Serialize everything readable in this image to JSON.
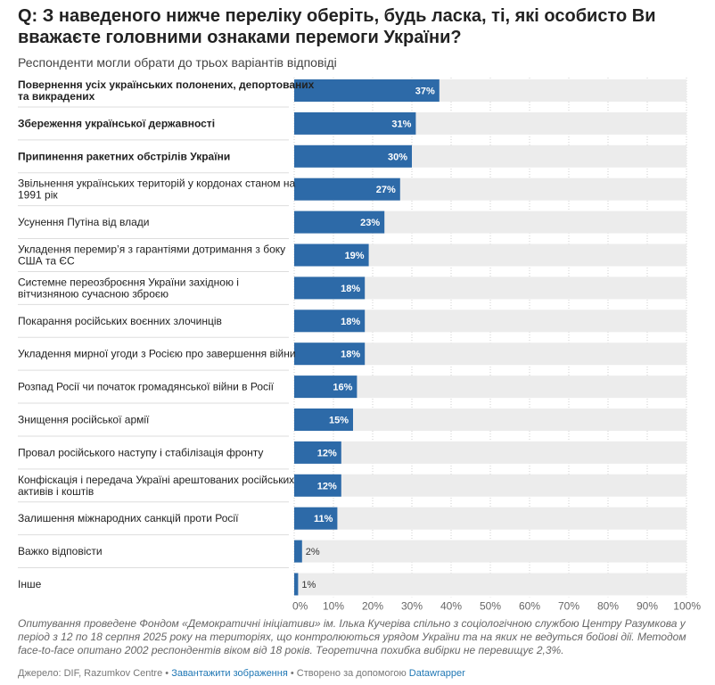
{
  "chart_data": {
    "type": "bar",
    "orientation": "horizontal",
    "title": "Q: З наведеного нижче переліку оберіть, будь ласка, ті, які особисто Ви вважаєте головними ознаками перемоги України?",
    "subtitle": "Респонденти могли обрати до трьох варіантів відповіді",
    "categories": [
      "Повернення усіх українських полонених, депортованих та викрадених",
      "Збереження української державності",
      "Припинення ракетних обстрілів України",
      "Звільнення українських територій у кордонах станом на 1991 рік",
      "Усунення Путіна від влади",
      "Укладення перемир’я з гарантіями дотримання з боку США та ЄС",
      "Системне переозброєння України західною і вітчизняною сучасною зброєю",
      "Покарання російських воєнних злочинців",
      "Укладення мирної угоди з Росією про завершення війни",
      "Розпад Росії чи початок громадянської війни в Росії",
      "Знищення російської армії",
      "Провал російського наступу і стабілізація фронту",
      "Конфіскація і передача Україні арештованих російських активів і коштів",
      "Залишення міжнародних санкцій проти Росії",
      "Важко відповісти",
      "Інше"
    ],
    "category_lines": [
      [
        "Повернення усіх українських полонених, депортованих",
        "та викрадених"
      ],
      [
        "Збереження української державності"
      ],
      [
        "Припинення ракетних обстрілів України"
      ],
      [
        "Звільнення українських територій у кордонах станом на",
        "1991 рік"
      ],
      [
        "Усунення Путіна від влади"
      ],
      [
        "Укладення перемир’я з гарантіями дотримання з боку",
        "США та ЄС"
      ],
      [
        "Системне переозброєння України західною і",
        "вітчизняною сучасною зброєю"
      ],
      [
        "Покарання російських воєнних злочинців"
      ],
      [
        "Укладення мирної угоди з Росією про завершення війни"
      ],
      [
        "Розпад Росії чи початок громадянської війни в Росії"
      ],
      [
        "Знищення російської армії"
      ],
      [
        "Провал російського наступу і стабілізація фронту"
      ],
      [
        "Конфіскація і передача Україні арештованих російських",
        "активів і коштів"
      ],
      [
        "Залишення міжнародних санкцій проти Росії"
      ],
      [
        "Важко відповісти"
      ],
      [
        "Інше"
      ]
    ],
    "bold_categories": [
      0,
      1,
      2
    ],
    "values": [
      37,
      31,
      30,
      27,
      23,
      19,
      18,
      18,
      18,
      16,
      15,
      12,
      12,
      11,
      2,
      1
    ],
    "value_labels": [
      "37%",
      "31%",
      "30%",
      "27%",
      "23%",
      "19%",
      "18%",
      "18%",
      "18%",
      "16%",
      "15%",
      "12%",
      "12%",
      "11%",
      "2%",
      "1%"
    ],
    "xlim": [
      0,
      100
    ],
    "ticks": [
      0,
      10,
      20,
      30,
      40,
      50,
      60,
      70,
      80,
      90,
      100
    ],
    "tick_labels": [
      "0%",
      "10%",
      "20%",
      "30%",
      "40%",
      "50%",
      "60%",
      "70%",
      "80%",
      "90%",
      "100%"
    ],
    "xlabel": "",
    "ylabel": "",
    "colors": {
      "bar": "#2d6aa8",
      "track": "#ececec",
      "label_inside": "#ffffff",
      "label_outside": "#333333"
    }
  },
  "notes": "Опитування проведене Фондом «Демократичні ініціативи» ім. Ілька Кучеріва спільно з соціологічною службою Центру Разумкова у період з 12 по 18 серпня 2025 року на територіях, що контролюються урядом України та на яких не ведуться бойові дії. Методом face-to-face опитано 2002 респондентів віком від 18 років. Теоретична похибка вибірки не перевищує 2,3%.",
  "footer": {
    "source": "Джерело: DIF, Razumkov Centre",
    "sep1": " • ",
    "download": "Завантажити зображення",
    "sep2": " • Створено за допомогою ",
    "tool": "Datawrapper"
  }
}
